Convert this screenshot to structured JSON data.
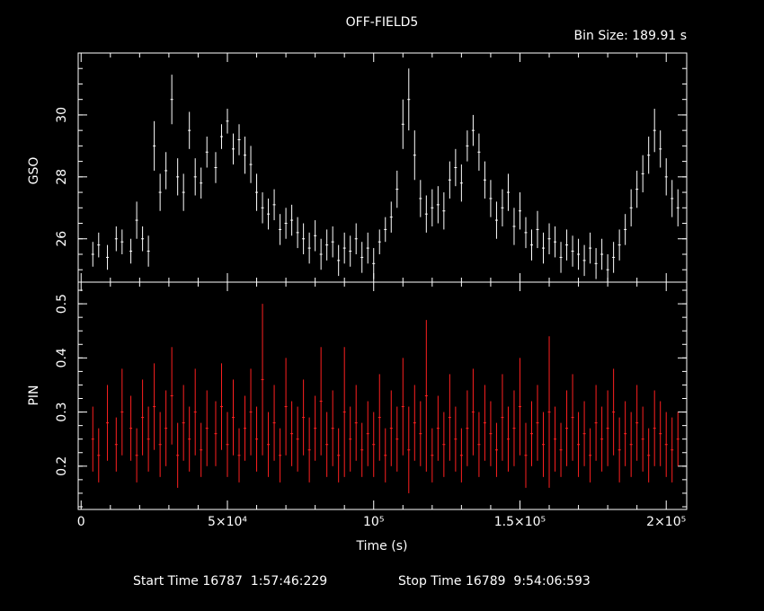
{
  "title": "OFF-FIELD5",
  "bin_size_label": "Bin Size: 189.91 s",
  "footer": {
    "start": "Start Time 16787  1:57:46:229",
    "stop": "Stop Time 16789  9:54:06:593"
  },
  "chart_data": [
    {
      "type": "scatter",
      "panel": "top",
      "ylabel": "GSO",
      "color": "#ffffff",
      "xlim": [
        -1000,
        207000
      ],
      "ylim": [
        24.6,
        32.0
      ],
      "yticks": [
        26,
        28,
        30
      ],
      "yticklabels": [
        "26",
        "28",
        "30"
      ],
      "x": [
        4000,
        6000,
        9000,
        12000,
        14000,
        17000,
        19000,
        21000,
        23000,
        25000,
        27000,
        29000,
        31000,
        33000,
        35000,
        37000,
        39000,
        41000,
        43000,
        46000,
        48000,
        50000,
        52000,
        54000,
        56000,
        58000,
        60000,
        62000,
        64000,
        66000,
        68000,
        70000,
        72000,
        74000,
        76000,
        78000,
        80000,
        82000,
        84000,
        86000,
        88000,
        90000,
        92000,
        94000,
        96000,
        98000,
        100000,
        102000,
        104000,
        106000,
        108000,
        110000,
        112000,
        114000,
        116000,
        118000,
        120000,
        122000,
        124000,
        126000,
        128000,
        130000,
        132000,
        134000,
        136000,
        138000,
        140000,
        142000,
        144000,
        146000,
        148000,
        150000,
        152000,
        154000,
        156000,
        158000,
        160000,
        162000,
        164000,
        166000,
        168000,
        170000,
        172000,
        174000,
        176000,
        178000,
        180000,
        182000,
        184000,
        186000,
        188000,
        190000,
        192000,
        194000,
        196000,
        198000,
        200000,
        202000,
        204000
      ],
      "y": [
        25.5,
        25.8,
        25.4,
        26.0,
        25.9,
        25.6,
        26.6,
        26.0,
        25.6,
        29.0,
        27.5,
        28.2,
        30.5,
        28.0,
        27.5,
        29.5,
        28.0,
        27.8,
        28.8,
        28.3,
        29.3,
        29.8,
        28.9,
        29.2,
        28.7,
        28.4,
        27.5,
        27.0,
        26.8,
        27.1,
        26.3,
        26.5,
        26.6,
        26.2,
        26.0,
        25.7,
        26.1,
        25.5,
        25.8,
        25.9,
        25.3,
        25.7,
        25.6,
        26.0,
        25.4,
        25.7,
        25.2,
        25.9,
        26.3,
        26.7,
        27.6,
        29.7,
        30.5,
        28.7,
        27.3,
        26.8,
        27.0,
        27.1,
        26.9,
        27.9,
        28.3,
        27.8,
        29.0,
        29.5,
        28.8,
        27.9,
        27.3,
        26.6,
        27.0,
        27.5,
        26.4,
        26.9,
        26.2,
        25.8,
        26.3,
        25.7,
        26.0,
        25.9,
        25.4,
        25.8,
        25.6,
        25.5,
        25.3,
        25.7,
        25.2,
        25.5,
        25.0,
        25.4,
        25.8,
        26.3,
        27.0,
        27.6,
        28.1,
        28.7,
        29.5,
        28.9,
        28.0,
        27.3,
        27.0
      ],
      "err": [
        0.4,
        0.4,
        0.4,
        0.4,
        0.4,
        0.4,
        0.6,
        0.4,
        0.5,
        0.8,
        0.6,
        0.6,
        0.8,
        0.6,
        0.6,
        0.6,
        0.6,
        0.5,
        0.5,
        0.5,
        0.4,
        0.4,
        0.5,
        0.5,
        0.6,
        0.6,
        0.6,
        0.5,
        0.5,
        0.5,
        0.5,
        0.5,
        0.5,
        0.5,
        0.5,
        0.5,
        0.5,
        0.5,
        0.5,
        0.5,
        0.5,
        0.5,
        0.5,
        0.5,
        0.5,
        0.5,
        0.5,
        0.4,
        0.4,
        0.5,
        0.6,
        0.8,
        1.0,
        0.8,
        0.6,
        0.6,
        0.6,
        0.6,
        0.6,
        0.6,
        0.6,
        0.6,
        0.5,
        0.5,
        0.6,
        0.6,
        0.6,
        0.6,
        0.6,
        0.6,
        0.6,
        0.6,
        0.5,
        0.5,
        0.6,
        0.5,
        0.5,
        0.5,
        0.5,
        0.5,
        0.5,
        0.5,
        0.5,
        0.5,
        0.5,
        0.5,
        0.5,
        0.5,
        0.5,
        0.5,
        0.6,
        0.6,
        0.6,
        0.6,
        0.7,
        0.6,
        0.6,
        0.6,
        0.6
      ]
    },
    {
      "type": "scatter",
      "panel": "bottom",
      "ylabel": "PIN",
      "xlabel": "Time (s)",
      "color": "#ff2020",
      "xlim": [
        -1000,
        207000
      ],
      "ylim": [
        0.12,
        0.54
      ],
      "yticks": [
        0.2,
        0.3,
        0.4,
        0.5
      ],
      "yticklabels": [
        "0.2",
        "0.3",
        "0.4",
        "0.5"
      ],
      "xticks": [
        0,
        50000,
        100000,
        150000,
        200000
      ],
      "xticklabels": [
        "0",
        "5×10⁴",
        "10⁵",
        "1.5×10⁵",
        "2×10⁵"
      ],
      "x": [
        4000,
        6000,
        9000,
        12000,
        14000,
        17000,
        19000,
        21000,
        23000,
        25000,
        27000,
        29000,
        31000,
        33000,
        35000,
        37000,
        39000,
        41000,
        43000,
        46000,
        48000,
        50000,
        52000,
        54000,
        56000,
        58000,
        60000,
        62000,
        64000,
        66000,
        68000,
        70000,
        72000,
        74000,
        76000,
        78000,
        80000,
        82000,
        84000,
        86000,
        88000,
        90000,
        92000,
        94000,
        96000,
        98000,
        100000,
        102000,
        104000,
        106000,
        108000,
        110000,
        112000,
        114000,
        116000,
        118000,
        120000,
        122000,
        124000,
        126000,
        128000,
        130000,
        132000,
        134000,
        136000,
        138000,
        140000,
        142000,
        144000,
        146000,
        148000,
        150000,
        152000,
        154000,
        156000,
        158000,
        160000,
        162000,
        164000,
        166000,
        168000,
        170000,
        172000,
        174000,
        176000,
        178000,
        180000,
        182000,
        184000,
        186000,
        188000,
        190000,
        192000,
        194000,
        196000,
        198000,
        200000,
        202000,
        204000
      ],
      "y": [
        0.25,
        0.22,
        0.28,
        0.24,
        0.3,
        0.27,
        0.22,
        0.29,
        0.25,
        0.31,
        0.24,
        0.27,
        0.33,
        0.22,
        0.28,
        0.25,
        0.3,
        0.23,
        0.27,
        0.26,
        0.31,
        0.24,
        0.29,
        0.22,
        0.27,
        0.3,
        0.25,
        0.36,
        0.24,
        0.28,
        0.22,
        0.31,
        0.26,
        0.25,
        0.29,
        0.23,
        0.27,
        0.32,
        0.24,
        0.27,
        0.22,
        0.3,
        0.25,
        0.28,
        0.23,
        0.26,
        0.24,
        0.29,
        0.22,
        0.27,
        0.25,
        0.31,
        0.23,
        0.28,
        0.26,
        0.33,
        0.22,
        0.27,
        0.24,
        0.29,
        0.25,
        0.22,
        0.27,
        0.3,
        0.24,
        0.28,
        0.26,
        0.23,
        0.29,
        0.25,
        0.27,
        0.31,
        0.22,
        0.26,
        0.28,
        0.24,
        0.3,
        0.25,
        0.23,
        0.27,
        0.29,
        0.24,
        0.26,
        0.22,
        0.28,
        0.25,
        0.27,
        0.3,
        0.23,
        0.26,
        0.24,
        0.28,
        0.25,
        0.22,
        0.27,
        0.26,
        0.24,
        0.23,
        0.25
      ],
      "err": [
        0.06,
        0.05,
        0.07,
        0.05,
        0.08,
        0.06,
        0.05,
        0.07,
        0.06,
        0.08,
        0.06,
        0.07,
        0.09,
        0.06,
        0.07,
        0.06,
        0.08,
        0.05,
        0.07,
        0.06,
        0.08,
        0.06,
        0.07,
        0.05,
        0.06,
        0.08,
        0.06,
        0.14,
        0.06,
        0.07,
        0.05,
        0.09,
        0.06,
        0.06,
        0.07,
        0.06,
        0.06,
        0.1,
        0.06,
        0.07,
        0.05,
        0.12,
        0.06,
        0.07,
        0.05,
        0.06,
        0.06,
        0.08,
        0.05,
        0.07,
        0.06,
        0.09,
        0.08,
        0.07,
        0.06,
        0.14,
        0.05,
        0.06,
        0.06,
        0.08,
        0.06,
        0.05,
        0.07,
        0.08,
        0.06,
        0.07,
        0.06,
        0.05,
        0.08,
        0.06,
        0.07,
        0.09,
        0.06,
        0.06,
        0.07,
        0.06,
        0.14,
        0.06,
        0.05,
        0.07,
        0.08,
        0.06,
        0.06,
        0.05,
        0.07,
        0.06,
        0.07,
        0.08,
        0.06,
        0.06,
        0.06,
        0.07,
        0.06,
        0.05,
        0.07,
        0.06,
        0.06,
        0.06,
        0.05
      ]
    }
  ]
}
